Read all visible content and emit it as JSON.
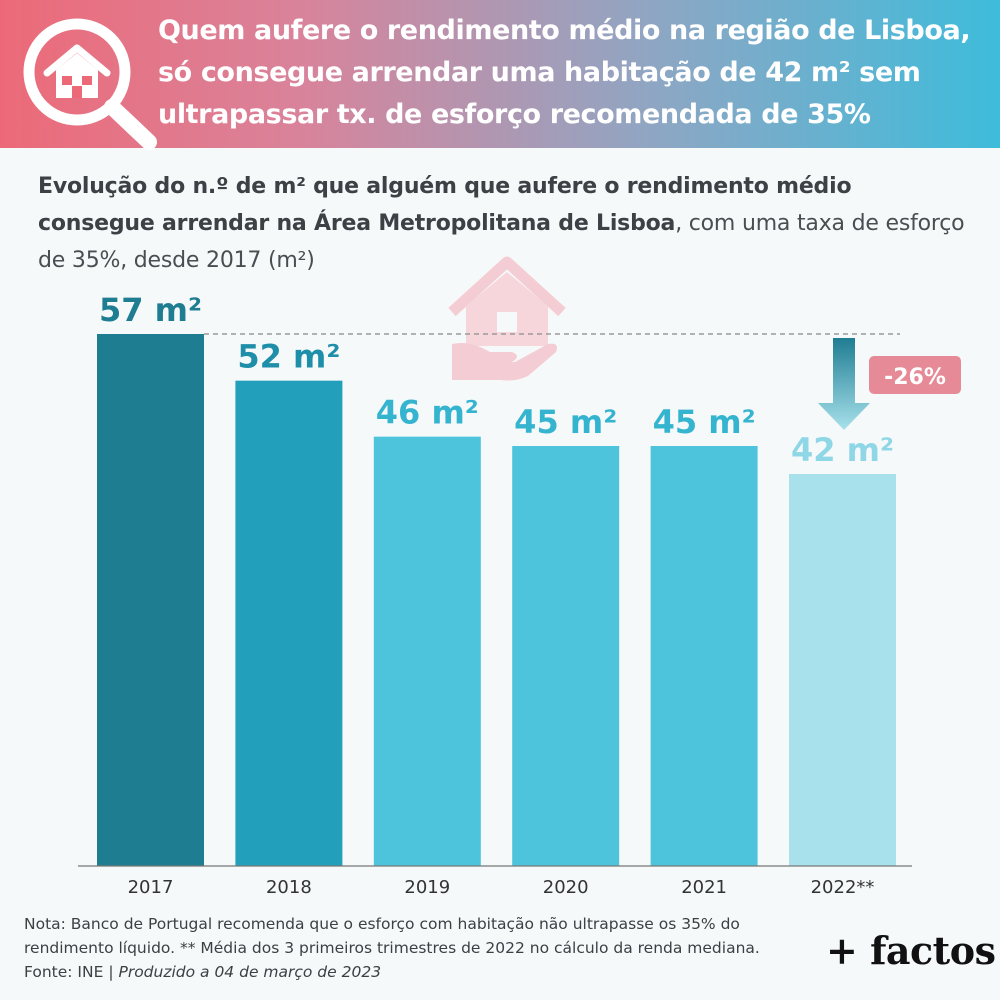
{
  "header": {
    "title": "Quem aufere o rendimento médio na região de Lisboa, só consegue arrendar uma habitação de 42 m² sem ultrapassar tx. de esforço recomendada de 35%"
  },
  "subtitle": {
    "bold": "Evolução do n.º de m² que alguém que aufere o rendimento médio consegue arrendar na Área Metropolitana de Lisboa",
    "rest": ", com uma taxa de esforço de 35%, desde 2017 (m²)"
  },
  "chart_data": {
    "type": "bar",
    "categories": [
      "2017",
      "2018",
      "2019",
      "2020",
      "2021",
      "2022**"
    ],
    "values": [
      57,
      52,
      46,
      45,
      45,
      42
    ],
    "value_labels": [
      "57 m²",
      "52 m²",
      "46 m²",
      "45 m²",
      "45 m²",
      "42 m²"
    ],
    "change_label": "-26%",
    "ylim": [
      0,
      57
    ],
    "grid": false,
    "colors": {
      "bars": [
        "#1f7d92",
        "#22a0bb",
        "#4dc3dc",
        "#4dc3dc",
        "#4dc3dc",
        "#a8e1ec"
      ],
      "labels": [
        "#1f7d92",
        "#1f8fa9",
        "#35b4d0",
        "#35b4d0",
        "#35b4d0",
        "#8fd6e6"
      ],
      "badge": "#e58a96",
      "reference_line": "#9a9a9a"
    }
  },
  "footer": {
    "note": "Nota: Banco de Portugal recomenda que o esforço com habitação não ultrapasse os 35% do rendimento líquido. ** Média dos 3 primeiros trimestres de 2022 no cálculo da renda mediana.",
    "source": "Fonte: INE | ",
    "produced": "Produzido a 04 de março de 2023",
    "brand": "+ factos"
  },
  "icons": {
    "header": "house-magnifier-icon",
    "watermark": "house-in-hand-icon",
    "arrow": "down-arrow-icon"
  }
}
